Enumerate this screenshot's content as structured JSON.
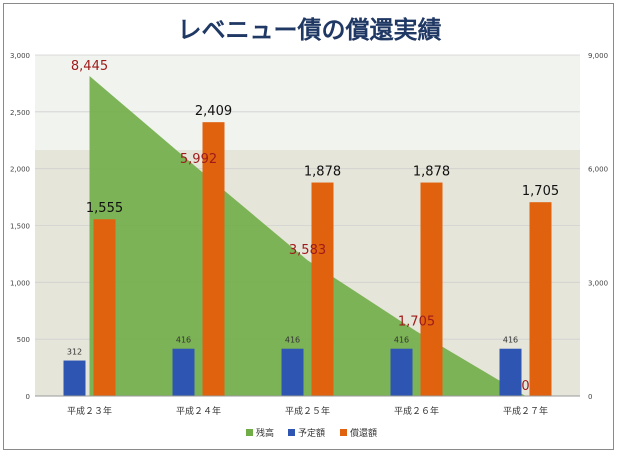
{
  "chart_data": {
    "type": "bar",
    "title": "レベニュー債の償還実績",
    "categories": [
      "平成２３年",
      "平成２４年",
      "平成２５年",
      "平成２６年",
      "平成２７年"
    ],
    "series": [
      {
        "name": "残高",
        "kind": "area",
        "axis": "right",
        "color": "#70ad47",
        "values": [
          8445,
          5992,
          3583,
          1705,
          0
        ]
      },
      {
        "name": "予定額",
        "kind": "bar",
        "axis": "left",
        "color": "#2f55b2",
        "values": [
          312,
          416,
          416,
          416,
          416
        ]
      },
      {
        "name": "償還額",
        "kind": "bar",
        "axis": "left",
        "color": "#e0620f",
        "values": [
          1555,
          2409,
          1878,
          1878,
          1705
        ]
      }
    ],
    "left_axis": {
      "ylim": [
        0,
        3000
      ],
      "ticks": [
        "0",
        "500",
        "1,000",
        "1,500",
        "2,000",
        "2,500",
        "3,000"
      ]
    },
    "right_axis": {
      "ylim": [
        0,
        9000
      ],
      "ticks": [
        "0",
        "3,000",
        "6,000",
        "9,000"
      ]
    },
    "area_labels": [
      "8,445",
      "5,992",
      "3,583",
      "1,705",
      "0"
    ],
    "plan_labels": [
      "312",
      "416",
      "416",
      "416",
      "416"
    ],
    "repay_labels": [
      "1,555",
      "2,409",
      "1,878",
      "1,878",
      "1,705"
    ],
    "legend": {
      "position": "bottom",
      "items": [
        "残高",
        "予定額",
        "償還額"
      ]
    },
    "grid": true
  }
}
